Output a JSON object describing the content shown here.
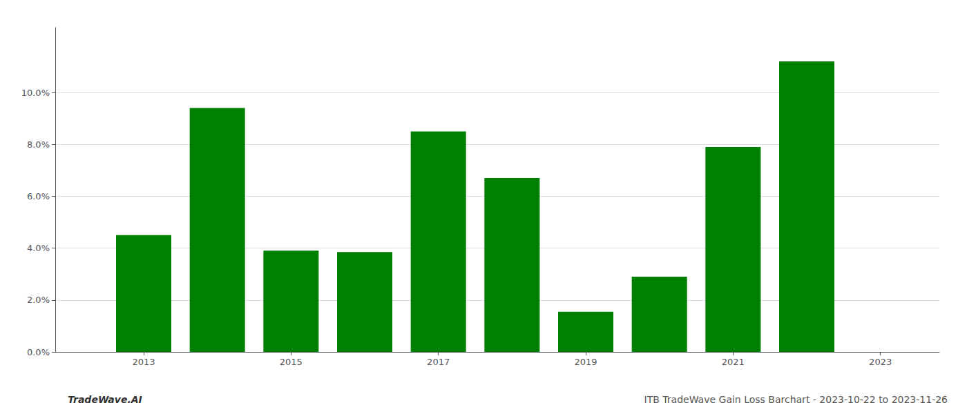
{
  "chart_data": {
    "type": "bar",
    "x": [
      2013,
      2014,
      2015,
      2016,
      2017,
      2018,
      2019,
      2020,
      2021,
      2022
    ],
    "values": [
      0.045,
      0.094,
      0.039,
      0.0385,
      0.085,
      0.067,
      0.0155,
      0.029,
      0.079,
      0.112
    ],
    "color": "#008000",
    "xlim": [
      2011.8,
      2023.8
    ],
    "xticks": [
      2013,
      2015,
      2017,
      2019,
      2021,
      2023
    ],
    "ylim": [
      0,
      0.125
    ],
    "yticks": [
      {
        "value": 0.0,
        "label": "0.0%"
      },
      {
        "value": 0.02,
        "label": "2.0%"
      },
      {
        "value": 0.04,
        "label": "4.0%"
      },
      {
        "value": 0.06,
        "label": "6.0%"
      },
      {
        "value": 0.08,
        "label": "8.0%"
      },
      {
        "value": 0.1,
        "label": "10.0%"
      }
    ],
    "grid": true,
    "annotations": [
      "TradeWave.AI",
      "ITB TradeWave Gain Loss Barchart - 2023-10-22 to 2023-11-26"
    ]
  }
}
